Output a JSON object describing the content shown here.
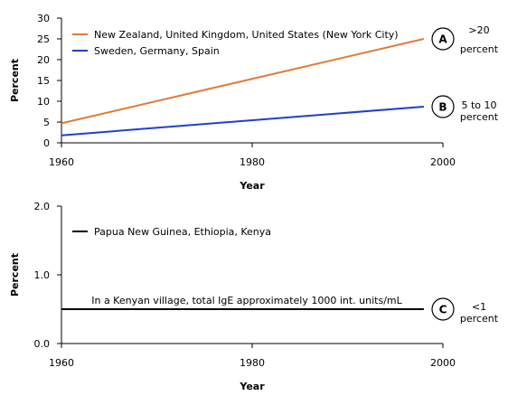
{
  "chart_data": [
    {
      "type": "line",
      "xlabel": "Year",
      "ylabel": "Percent",
      "xlim": [
        1960,
        2000
      ],
      "ylim": [
        0,
        30
      ],
      "x_ticks": [
        "1960",
        "1980",
        "2000"
      ],
      "y_ticks": [
        "0",
        "5",
        "10",
        "15",
        "20",
        "25",
        "30"
      ],
      "legend_position": "top-left",
      "grid": false,
      "series": [
        {
          "name": "New Zealand, United Kingdom, United States (New York City)",
          "color": "#e07b39",
          "points": [
            [
              1960,
              4.7
            ],
            [
              1998,
              25
            ]
          ]
        },
        {
          "name": "Sweden, Germany, Spain",
          "color": "#1f3fd1",
          "points": [
            [
              1960,
              1.8
            ],
            [
              1998,
              8.7
            ]
          ]
        }
      ],
      "markers": [
        {
          "letter": "A",
          "label_line1": ">20",
          "label_line2": "percent",
          "series_index": 0
        },
        {
          "letter": "B",
          "label_line1": "5 to 10",
          "label_line2": "percent",
          "series_index": 1
        }
      ]
    },
    {
      "type": "line",
      "xlabel": "Year",
      "ylabel": "Percent",
      "xlim": [
        1960,
        2000
      ],
      "ylim": [
        0,
        2
      ],
      "x_ticks": [
        "1960",
        "1980",
        "2000"
      ],
      "y_ticks": [
        "0.0",
        "1.0",
        "2.0"
      ],
      "legend_position": "top-left",
      "grid": false,
      "series": [
        {
          "name": "Papua New Guinea, Ethiopia, Kenya",
          "color": "#000000",
          "points": [
            [
              1960,
              0.5
            ],
            [
              1998,
              0.5
            ]
          ]
        }
      ],
      "annotation": "In a Kenyan village, total IgE approximately 1000 int. units/mL",
      "markers": [
        {
          "letter": "C",
          "label_line1": "<1",
          "label_line2": "percent",
          "series_index": 0
        }
      ]
    }
  ]
}
